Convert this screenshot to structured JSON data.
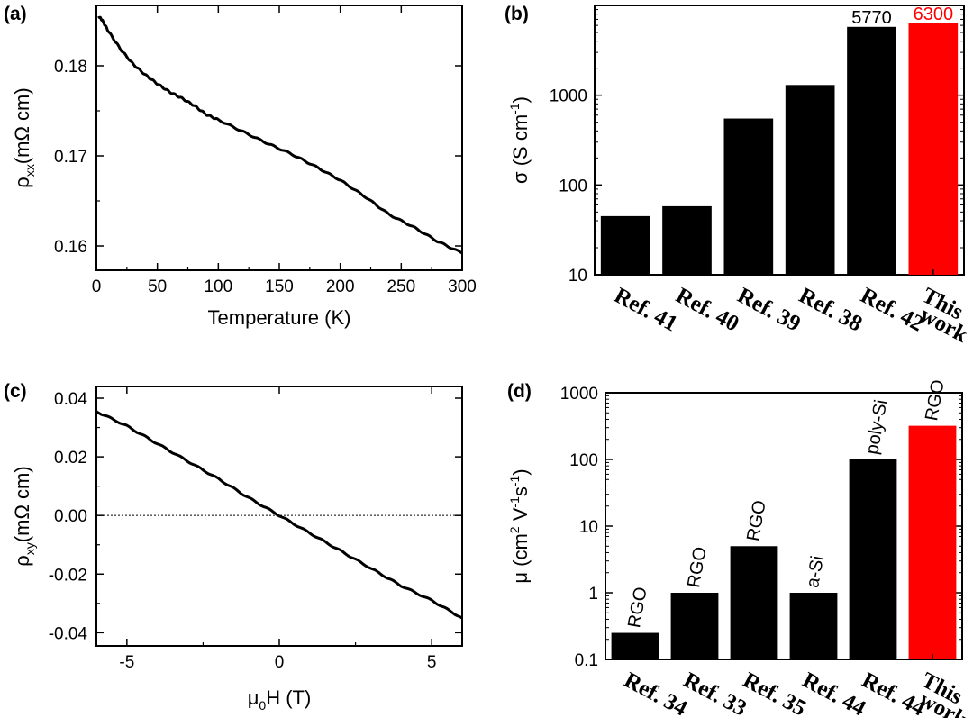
{
  "chart_data": [
    {
      "id": "a",
      "panel_label": "(a)",
      "type": "line",
      "xlabel": "Temperature (K)",
      "ylabel_base": "ρ",
      "ylabel_sub": "xx",
      "ylabel_rest": "(mΩ cm)",
      "xlim": [
        0,
        300
      ],
      "ylim": [
        0.1573,
        0.1867
      ],
      "x_ticks": [
        0,
        50,
        100,
        150,
        200,
        250,
        300
      ],
      "y_ticks": [
        0.16,
        0.17,
        0.18
      ],
      "y_tick_labels": [
        "0.16",
        "0.17",
        "0.18"
      ],
      "x": [
        2,
        5,
        10,
        20,
        30,
        40,
        50,
        60,
        70,
        80,
        90,
        100,
        120,
        140,
        160,
        180,
        200,
        220,
        240,
        260,
        280,
        300
      ],
      "y": [
        0.1855,
        0.185,
        0.1838,
        0.1818,
        0.1802,
        0.179,
        0.178,
        0.1771,
        0.1764,
        0.1756,
        0.1746,
        0.174,
        0.1727,
        0.1714,
        0.1702,
        0.1688,
        0.1673,
        0.1655,
        0.1635,
        0.1621,
        0.1605,
        0.1592
      ]
    },
    {
      "id": "b",
      "panel_label": "(b)",
      "type": "bar",
      "yscale": "log",
      "ylabel_main": "σ (S cm",
      "ylabel_sup": "-1",
      "ylabel_end": ")",
      "ylim": [
        10,
        10000
      ],
      "y_ticks": [
        10,
        100,
        1000
      ],
      "y_tick_labels": [
        "10",
        "100",
        "1000"
      ],
      "categories": [
        "Ref. 41",
        "Ref. 40",
        "Ref. 39",
        "Ref. 38",
        "Ref. 42",
        "This work"
      ],
      "category_lines": [
        [
          "Ref. 41"
        ],
        [
          "Ref. 40"
        ],
        [
          "Ref. 39"
        ],
        [
          "Ref. 38"
        ],
        [
          "Ref. 42"
        ],
        [
          "This",
          "work"
        ]
      ],
      "values": [
        45,
        58,
        550,
        1300,
        5770,
        6300
      ],
      "bar_labels": [
        "",
        "",
        "",
        "",
        "5770",
        "6300"
      ],
      "colors": [
        "#000000",
        "#000000",
        "#000000",
        "#000000",
        "#000000",
        "#ff0000"
      ]
    },
    {
      "id": "c",
      "panel_label": "(c)",
      "type": "line",
      "xlabel_base": "μ",
      "xlabel_sub": "0",
      "xlabel_rest": "H (T)",
      "ylabel_base": "ρ",
      "ylabel_sub": "xy",
      "ylabel_rest": "(mΩ cm)",
      "xlim": [
        -6,
        6
      ],
      "ylim": [
        -0.0445,
        0.044
      ],
      "x_ticks": [
        -5,
        0,
        5
      ],
      "x_tick_labels": [
        "-5",
        "0",
        "5"
      ],
      "y_ticks": [
        -0.04,
        -0.02,
        0.0,
        0.02,
        0.04
      ],
      "y_tick_labels": [
        "-0.04",
        "-0.02",
        "0.00",
        "0.02",
        "0.04"
      ],
      "zero_line": true,
      "x": [
        -6,
        -5,
        -4,
        -3,
        -2,
        -1,
        0,
        1,
        2,
        3,
        4,
        5,
        6
      ],
      "y": [
        0.0355,
        0.0305,
        0.0245,
        0.0185,
        0.0125,
        0.006,
        0.0,
        -0.006,
        -0.012,
        -0.018,
        -0.024,
        -0.029,
        -0.035
      ]
    },
    {
      "id": "d",
      "panel_label": "(d)",
      "type": "bar",
      "yscale": "log",
      "ylabel_main": "μ (cm",
      "ylabel_sup1": "2",
      "ylabel_mid": " V",
      "ylabel_sup2": "-1",
      "ylabel_mid2": "s",
      "ylabel_sup3": "-1",
      "ylabel_end": ")",
      "ylim": [
        0.1,
        1000
      ],
      "y_ticks": [
        0.1,
        1,
        10,
        100,
        1000
      ],
      "y_tick_labels": [
        "0.1",
        "1",
        "10",
        "100",
        "1000"
      ],
      "categories": [
        "Ref. 34",
        "Ref. 33",
        "Ref. 35",
        "Ref. 44",
        "Ref. 44",
        "This work"
      ],
      "category_lines": [
        [
          "Ref. 34"
        ],
        [
          "Ref. 33"
        ],
        [
          "Ref. 35"
        ],
        [
          "Ref. 44"
        ],
        [
          "Ref. 44"
        ],
        [
          "This",
          "work"
        ]
      ],
      "values": [
        0.25,
        1,
        5,
        1,
        100,
        320
      ],
      "bar_labels": [
        "RGO",
        "RGO",
        "RGO",
        "a-Si",
        "poly-Si",
        "RGO"
      ],
      "colors": [
        "#000000",
        "#000000",
        "#000000",
        "#000000",
        "#000000",
        "#ff0000"
      ]
    }
  ]
}
